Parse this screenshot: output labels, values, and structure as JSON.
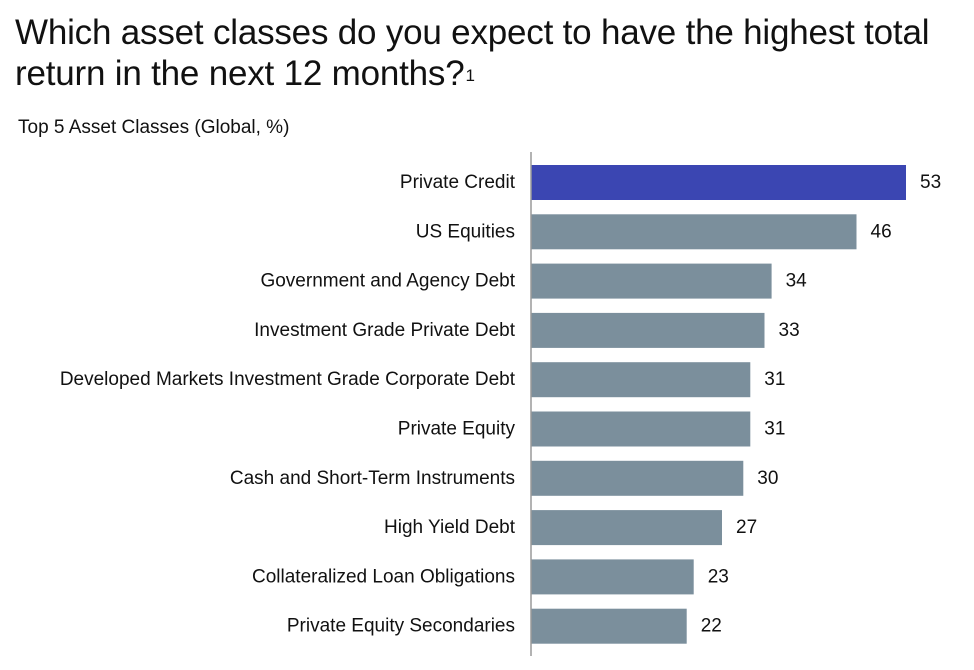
{
  "header": {
    "title": "Which asset classes do you expect to have the highest total return in the next 12 months?",
    "footnote_marker": "1",
    "subtitle": "Top 5 Asset Classes (Global, %)"
  },
  "colors": {
    "highlight": "#3b46b2",
    "bar": "#7b8f9c",
    "axis": "#9a9a9a",
    "text": "#111111"
  },
  "chart_data": {
    "type": "bar",
    "orientation": "horizontal",
    "title": "Which asset classes do you expect to have the highest total return in the next 12 months?",
    "subtitle": "Top 5 Asset Classes (Global, %)",
    "categories": [
      "Private Credit",
      "US Equities",
      "Government and Agency Debt",
      "Investment Grade Private Debt",
      "Developed Markets Investment Grade Corporate Debt",
      "Private Equity",
      "Cash and Short-Term Instruments",
      "High Yield Debt",
      "Collateralized Loan Obligations",
      "Private Equity Secondaries"
    ],
    "values": [
      53,
      46,
      34,
      33,
      31,
      31,
      30,
      27,
      23,
      22
    ],
    "highlight_index": 0,
    "xlabel": "",
    "ylabel": "",
    "xlim": [
      0,
      53
    ],
    "grid": false,
    "legend": "none"
  }
}
